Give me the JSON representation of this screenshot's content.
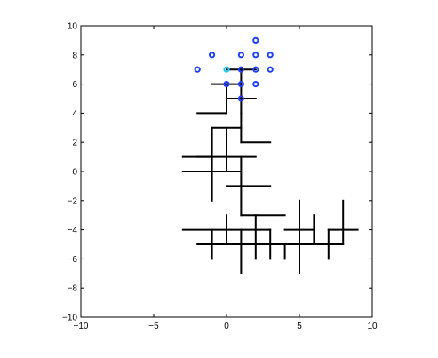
{
  "chart_data": {
    "type": "scatter",
    "title": "",
    "xlabel": "",
    "ylabel": "",
    "xlim": [
      -10,
      10
    ],
    "ylim": [
      -10,
      10
    ],
    "grid": false,
    "xticks": [
      -10,
      -5,
      0,
      5,
      10
    ],
    "yticks": [
      -10,
      -8,
      -6,
      -4,
      -2,
      0,
      2,
      4,
      6,
      8,
      10
    ],
    "xtick_labels": [
      "−10",
      "−5",
      "0",
      "5",
      "10"
    ],
    "ytick_labels": [
      "−10",
      "−8",
      "−6",
      "−4",
      "−2",
      "0",
      "2",
      "4",
      "6",
      "8",
      "10"
    ],
    "segments": [
      [
        [
          1,
          5
        ],
        [
          1,
          7
        ]
      ],
      [
        [
          0,
          7
        ],
        [
          2,
          7
        ]
      ],
      [
        [
          -1,
          6
        ],
        [
          1,
          6
        ]
      ],
      [
        [
          0,
          4
        ],
        [
          0,
          6
        ]
      ],
      [
        [
          0,
          5
        ],
        [
          2,
          5
        ]
      ],
      [
        [
          1,
          4
        ],
        [
          1,
          5
        ]
      ],
      [
        [
          -2,
          4
        ],
        [
          0,
          4
        ]
      ],
      [
        [
          1,
          2
        ],
        [
          1,
          4
        ]
      ],
      [
        [
          -1,
          3
        ],
        [
          1,
          3
        ]
      ],
      [
        [
          -1,
          0
        ],
        [
          -1,
          3
        ]
      ],
      [
        [
          1,
          2
        ],
        [
          3,
          2
        ]
      ],
      [
        [
          -2,
          1
        ],
        [
          2,
          1
        ]
      ],
      [
        [
          0,
          0
        ],
        [
          0,
          3
        ]
      ],
      [
        [
          -3,
          1
        ],
        [
          -1,
          1
        ]
      ],
      [
        [
          -3,
          0
        ],
        [
          1,
          0
        ]
      ],
      [
        [
          1,
          -1
        ],
        [
          1,
          1
        ]
      ],
      [
        [
          0,
          -1
        ],
        [
          3,
          -1
        ]
      ],
      [
        [
          -1,
          -2
        ],
        [
          -1,
          0
        ]
      ],
      [
        [
          1,
          -3
        ],
        [
          1,
          -1
        ]
      ],
      [
        [
          1,
          -3
        ],
        [
          4,
          -3
        ]
      ],
      [
        [
          0,
          -5
        ],
        [
          0,
          -3
        ]
      ],
      [
        [
          -3,
          -4
        ],
        [
          3,
          -4
        ]
      ],
      [
        [
          -2,
          -5
        ],
        [
          2,
          -5
        ]
      ],
      [
        [
          -1,
          -6
        ],
        [
          -1,
          -4
        ]
      ],
      [
        [
          1,
          -7
        ],
        [
          1,
          -4
        ]
      ],
      [
        [
          2,
          -6
        ],
        [
          2,
          -3
        ]
      ],
      [
        [
          2,
          -5
        ],
        [
          8,
          -5
        ]
      ],
      [
        [
          3,
          -6
        ],
        [
          3,
          -4
        ]
      ],
      [
        [
          4,
          -6
        ],
        [
          4,
          -5
        ]
      ],
      [
        [
          5,
          -5
        ],
        [
          5,
          -2
        ]
      ],
      [
        [
          4,
          -4
        ],
        [
          6,
          -4
        ]
      ],
      [
        [
          6,
          -5
        ],
        [
          6,
          -3
        ]
      ],
      [
        [
          5,
          -5
        ],
        [
          5,
          -7
        ]
      ],
      [
        [
          7,
          -6
        ],
        [
          7,
          -4
        ]
      ],
      [
        [
          7,
          -4
        ],
        [
          9,
          -4
        ]
      ],
      [
        [
          8,
          -5
        ],
        [
          8,
          -2
        ]
      ]
    ],
    "series": [
      {
        "marker": "o",
        "color": "#1f3fff",
        "points": [
          [
            2,
            9
          ],
          [
            -1,
            8
          ],
          [
            1,
            8
          ],
          [
            2,
            8
          ],
          [
            3,
            8
          ],
          [
            -2,
            7
          ],
          [
            1,
            7
          ],
          [
            2,
            7
          ],
          [
            3,
            7
          ],
          [
            0,
            6
          ],
          [
            1,
            6
          ],
          [
            2,
            6
          ],
          [
            1,
            5
          ]
        ]
      },
      {
        "marker": "o",
        "color": "#22ccee",
        "points": [
          [
            0,
            7
          ]
        ]
      }
    ]
  }
}
